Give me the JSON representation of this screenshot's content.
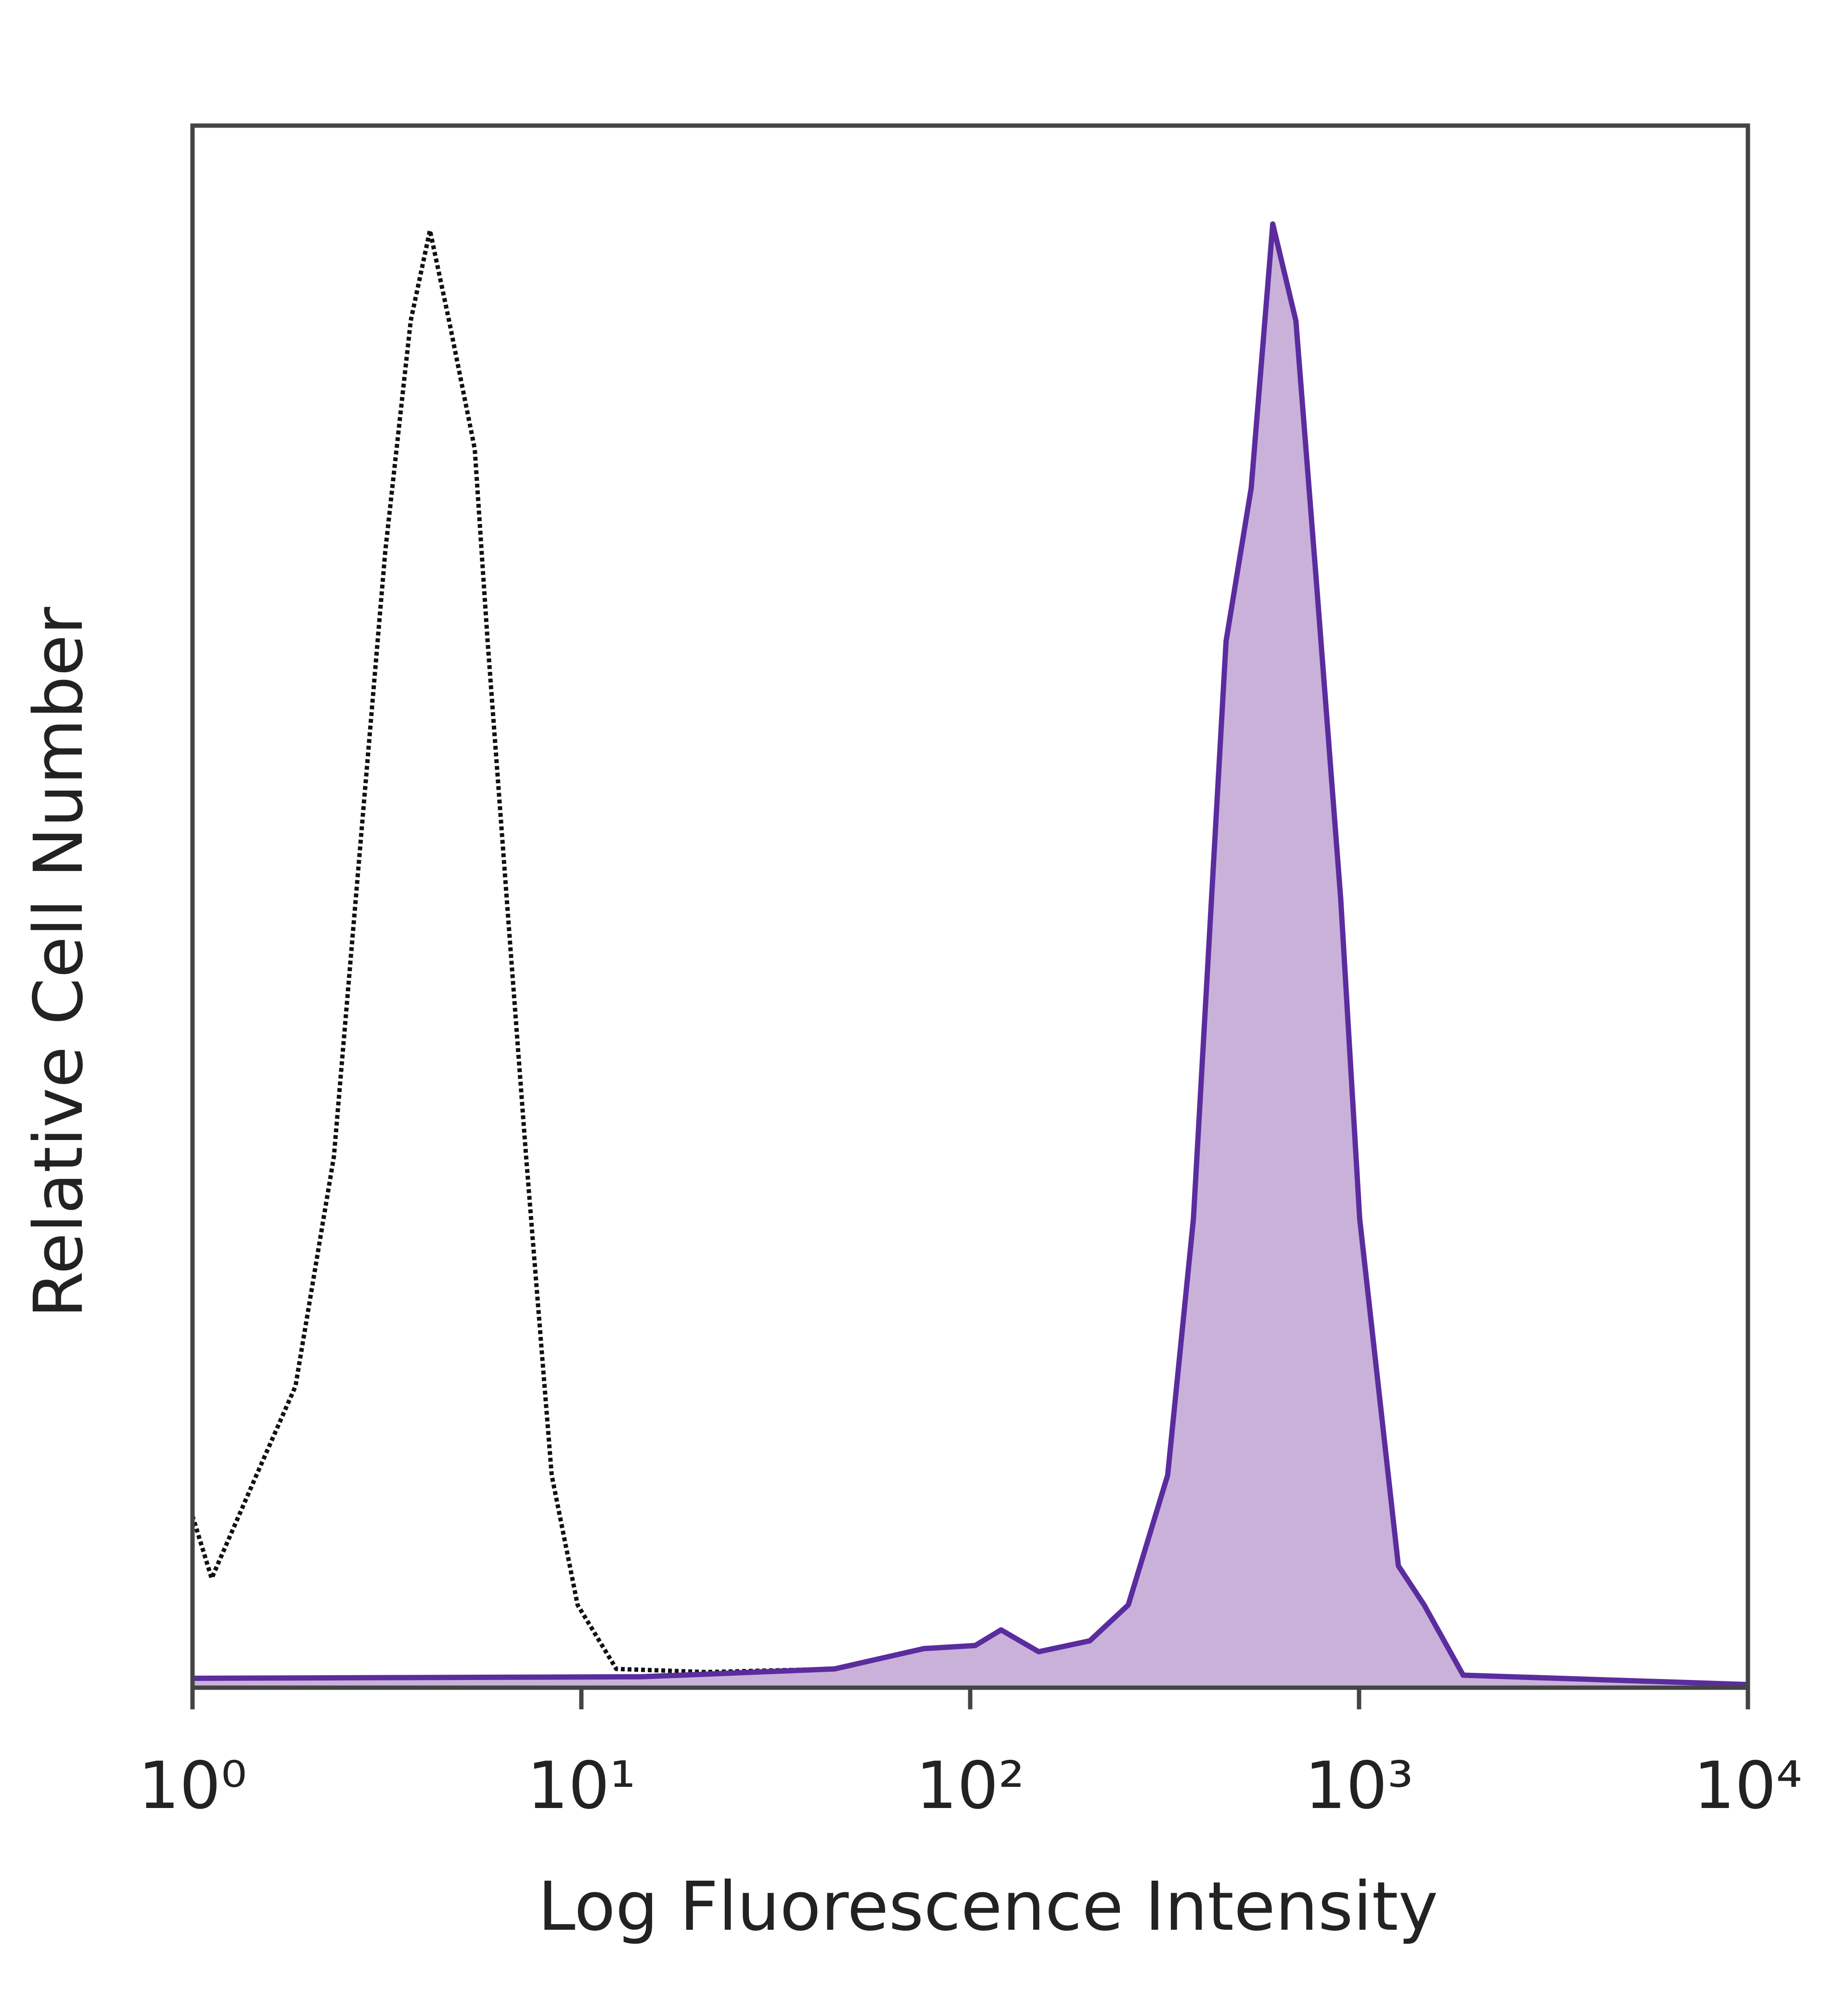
{
  "chart_data": {
    "type": "line",
    "xlabel": "Log Fluorescence Intensity",
    "ylabel": "Relative Cell Number",
    "xscale": "log",
    "xlim": [
      1,
      10000
    ],
    "ylim": [
      0,
      100
    ],
    "xticks": [
      {
        "value": 1,
        "label": "10⁰"
      },
      {
        "value": 10,
        "label": "10¹"
      },
      {
        "value": 100,
        "label": "10²"
      },
      {
        "value": 1000,
        "label": "10³"
      },
      {
        "value": 10000,
        "label": "10⁴"
      }
    ],
    "series": [
      {
        "color": "#111111",
        "line_style": "dotted",
        "x": [
          1,
          1.12,
          1.46,
          1.84,
          2.31,
          3.13,
          3.64,
          4.08,
          4.57,
          5.32,
          5.74,
          6.43,
          7.21,
          8.39,
          9.78,
          12.3,
          20.9,
          44.8,
          65.4,
          10000
        ],
        "values": [
          11,
          7,
          13.6,
          19.3,
          34,
          72.7,
          87.5,
          93.3,
          87.5,
          79.3,
          67,
          50.5,
          34,
          13.6,
          5.3,
          1.2,
          1,
          1.2,
          0.4,
          0.2
        ]
      },
      {
        "color": "#5b2c9e",
        "line_style": "solid",
        "fill": "#c9b1d9",
        "x": [
          1,
          14.3,
          44.8,
          76,
          103,
          120,
          150,
          203,
          255,
          322,
          375,
          455,
          528,
          600,
          688,
          775,
          897,
          1004,
          1262,
          1470,
          1853,
          10000
        ],
        "values": [
          0.6,
          0.7,
          1.2,
          2.5,
          2.7,
          3.7,
          2.3,
          3,
          5.3,
          13.6,
          30,
          67,
          76.8,
          93.7,
          87.5,
          71.1,
          50.5,
          30,
          7.8,
          5.3,
          0.8,
          0.2
        ]
      }
    ]
  }
}
